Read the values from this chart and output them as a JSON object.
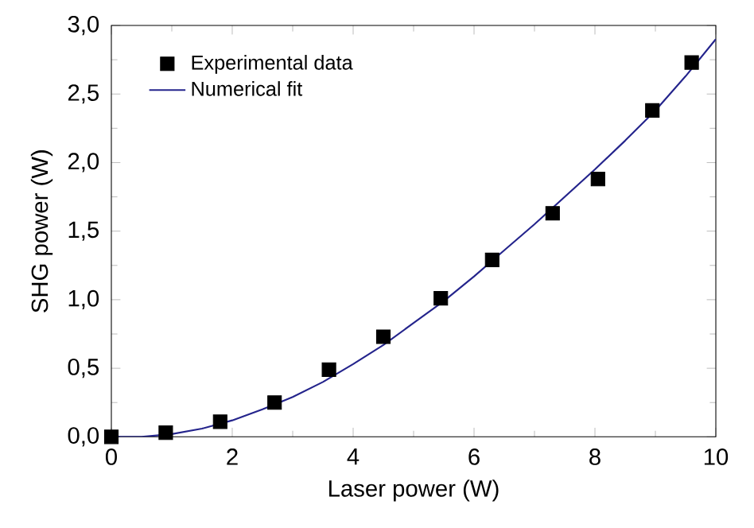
{
  "chart_data": {
    "type": "scatter",
    "xlabel": "Laser power (W)",
    "ylabel": "SHG power (W)",
    "xlim": [
      0,
      10
    ],
    "xticks": [
      0,
      2,
      4,
      6,
      8,
      10
    ],
    "ylim": [
      0,
      3
    ],
    "yticks": [
      {
        "value": 0,
        "label": "0,0"
      },
      {
        "value": 0.5,
        "label": "0,5"
      },
      {
        "value": 1,
        "label": "1,0"
      },
      {
        "value": 1.5,
        "label": "1,5"
      },
      {
        "value": 2,
        "label": "2,0"
      },
      {
        "value": 2.5,
        "label": "2,5"
      },
      {
        "value": 3,
        "label": "3,0"
      }
    ],
    "grid": false,
    "legend": "top left",
    "series": [
      {
        "name": "Experimental data",
        "marker": "square",
        "color": "#000000",
        "x": [
          0,
          0.9,
          1.8,
          2.7,
          3.6,
          4.5,
          5.45,
          6.3,
          7.3,
          8.05,
          8.95,
          9.6
        ],
        "values": [
          0.0,
          0.03,
          0.11,
          0.25,
          0.49,
          0.73,
          1.01,
          1.29,
          1.63,
          1.88,
          2.38,
          2.73
        ]
      },
      {
        "name": "Numerical fit",
        "type": "line",
        "marker": "none",
        "line_style": "solid",
        "color": "#24248c",
        "x": [
          0,
          0.5,
          1,
          1.5,
          2,
          2.5,
          3,
          3.5,
          4,
          4.5,
          5,
          5.5,
          6,
          6.5,
          7,
          7.5,
          8,
          8.5,
          9,
          9.5,
          10
        ],
        "values": [
          0,
          0.0,
          0.02,
          0.06,
          0.12,
          0.2,
          0.29,
          0.4,
          0.53,
          0.67,
          0.83,
          0.99,
          1.17,
          1.36,
          1.55,
          1.75,
          1.95,
          2.16,
          2.38,
          2.63,
          2.9
        ]
      }
    ]
  }
}
